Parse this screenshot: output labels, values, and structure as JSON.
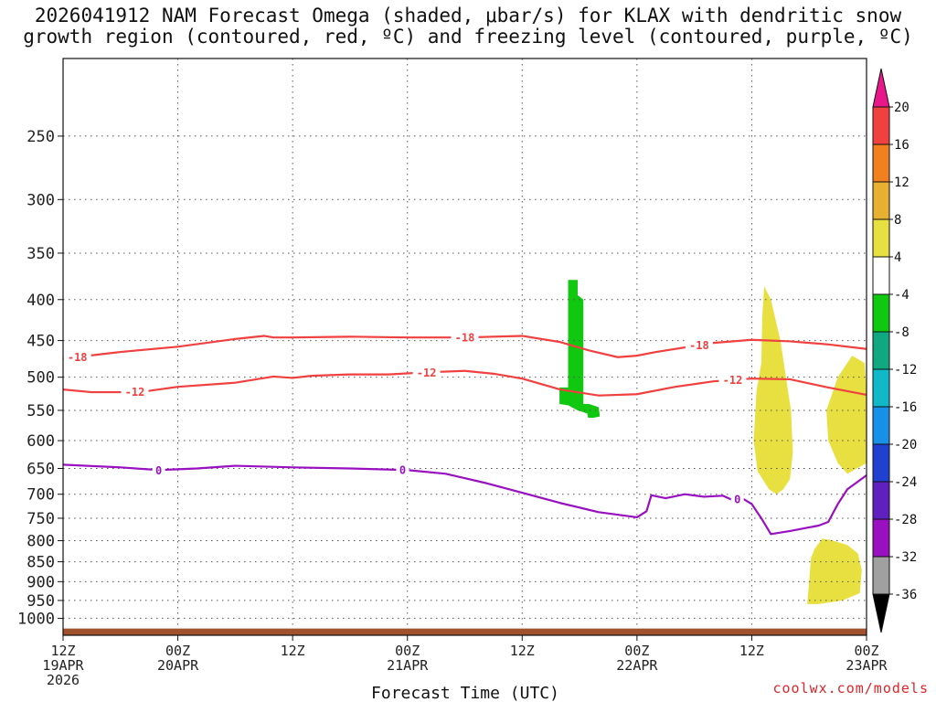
{
  "title_line1": "2026041912 NAM Forecast Omega (shaded, μbar/s) for KLAX with dendritic snow",
  "title_line2": "growth region (contoured, red, ºC) and freezing level (contoured, purple, ºC)",
  "attribution": "coolwx.com/models",
  "chart_data": {
    "type": "heatmap",
    "xlabel": "Forecast Time (UTC)",
    "x_range_hours": [
      0,
      84
    ],
    "y_scale": "log-pressure",
    "y_range_hPa": [
      1050,
      200
    ],
    "grid": true,
    "xticks": [
      {
        "hour": 0,
        "l1": "12Z",
        "l2": "19APR",
        "l3": "2026"
      },
      {
        "hour": 12,
        "l1": "00Z",
        "l2": "20APR",
        "l3": ""
      },
      {
        "hour": 24,
        "l1": "12Z",
        "l2": "",
        "l3": ""
      },
      {
        "hour": 36,
        "l1": "00Z",
        "l2": "21APR",
        "l3": ""
      },
      {
        "hour": 48,
        "l1": "12Z",
        "l2": "",
        "l3": ""
      },
      {
        "hour": 60,
        "l1": "00Z",
        "l2": "22APR",
        "l3": ""
      },
      {
        "hour": 72,
        "l1": "12Z",
        "l2": "",
        "l3": ""
      },
      {
        "hour": 84,
        "l1": "00Z",
        "l2": "23APR",
        "l3": ""
      }
    ],
    "yticks": [
      250,
      300,
      350,
      400,
      450,
      500,
      550,
      600,
      650,
      700,
      750,
      800,
      850,
      900,
      950,
      1000
    ],
    "colorbar": {
      "levels": [
        20,
        16,
        12,
        8,
        4,
        -4,
        -8,
        -12,
        -16,
        -20,
        -24,
        -28,
        -32,
        -36
      ],
      "colors": [
        "#e8188a",
        "#f04040",
        "#f08020",
        "#e8b030",
        "#e8e040",
        "#ffffff",
        "#10c810",
        "#10a880",
        "#10b8c8",
        "#1890e8",
        "#2040d0",
        "#6020c0",
        "#9810c0",
        "#a0a0a0",
        "#000000"
      ]
    },
    "contours": [
      {
        "name": "-18",
        "color": "#f04040",
        "labels_at_hours": [
          1.5,
          42,
          66.5
        ],
        "points": [
          [
            0,
            474
          ],
          [
            6,
            465
          ],
          [
            12,
            458
          ],
          [
            18,
            448
          ],
          [
            21,
            444
          ],
          [
            22,
            446
          ],
          [
            24,
            446
          ],
          [
            30,
            445
          ],
          [
            36,
            446
          ],
          [
            42,
            446
          ],
          [
            48,
            444
          ],
          [
            52,
            452
          ],
          [
            55,
            463
          ],
          [
            58,
            472
          ],
          [
            60,
            470
          ],
          [
            62,
            465
          ],
          [
            66,
            457
          ],
          [
            68,
            453
          ],
          [
            72,
            449
          ],
          [
            76,
            451
          ],
          [
            80,
            455
          ],
          [
            84,
            461
          ]
        ]
      },
      {
        "name": "-12",
        "color": "#f04040",
        "labels_at_hours": [
          7.5,
          38,
          70
        ],
        "points": [
          [
            0,
            518
          ],
          [
            3,
            522
          ],
          [
            6,
            522
          ],
          [
            9,
            520
          ],
          [
            12,
            514
          ],
          [
            18,
            508
          ],
          [
            22,
            499
          ],
          [
            24,
            501
          ],
          [
            26,
            498
          ],
          [
            30,
            496
          ],
          [
            34,
            496
          ],
          [
            38,
            493
          ],
          [
            42,
            491
          ],
          [
            45,
            495
          ],
          [
            48,
            502
          ],
          [
            50,
            510
          ],
          [
            52,
            518
          ],
          [
            56,
            527
          ],
          [
            60,
            525
          ],
          [
            64,
            514
          ],
          [
            68,
            506
          ],
          [
            72,
            502
          ],
          [
            76,
            503
          ],
          [
            80,
            515
          ],
          [
            84,
            526
          ]
        ]
      },
      {
        "name": "0",
        "color": "#9810c0",
        "labels_at_hours": [
          10,
          35.5,
          70.5
        ],
        "points": [
          [
            0,
            643
          ],
          [
            6,
            648
          ],
          [
            10,
            653
          ],
          [
            14,
            650
          ],
          [
            18,
            645
          ],
          [
            24,
            648
          ],
          [
            30,
            650
          ],
          [
            36,
            653
          ],
          [
            40,
            660
          ],
          [
            44,
            677
          ],
          [
            48,
            697
          ],
          [
            52,
            718
          ],
          [
            56,
            737
          ],
          [
            60,
            748
          ],
          [
            61,
            735
          ],
          [
            61.5,
            702
          ],
          [
            63,
            708
          ],
          [
            65,
            700
          ],
          [
            67,
            705
          ],
          [
            69,
            703
          ],
          [
            70,
            712
          ],
          [
            71,
            708
          ],
          [
            72,
            720
          ],
          [
            73,
            750
          ],
          [
            74,
            785
          ],
          [
            76,
            778
          ],
          [
            78,
            770
          ],
          [
            79,
            766
          ],
          [
            80,
            758
          ],
          [
            81,
            720
          ],
          [
            82,
            690
          ],
          [
            84,
            663
          ]
        ]
      }
    ],
    "shaded_regions": [
      {
        "value_range": [
          -8,
          -4
        ],
        "color": "#10c810",
        "polygon": [
          [
            52.8,
            378
          ],
          [
            53.8,
            378
          ],
          [
            53.8,
            395
          ],
          [
            54.4,
            400
          ],
          [
            54.4,
            540
          ],
          [
            55,
            540
          ],
          [
            56,
            545
          ],
          [
            56.1,
            557
          ],
          [
            56.1,
            560
          ],
          [
            55.4,
            562
          ],
          [
            54.9,
            562
          ],
          [
            54.8,
            555
          ],
          [
            53.8,
            550
          ],
          [
            52.8,
            542
          ],
          [
            51.9,
            540
          ],
          [
            51.9,
            515
          ],
          [
            52.8,
            515
          ]
        ]
      },
      {
        "value_range": [
          4,
          8
        ],
        "color": "#e8e040",
        "polygon": [
          [
            73.3,
            385
          ],
          [
            74,
            400
          ],
          [
            75,
            450
          ],
          [
            76.1,
            550
          ],
          [
            76.3,
            620
          ],
          [
            76,
            670
          ],
          [
            75.3,
            690
          ],
          [
            74.6,
            700
          ],
          [
            73.8,
            690
          ],
          [
            72.6,
            655
          ],
          [
            72.2,
            600
          ],
          [
            72.5,
            520
          ],
          [
            73,
            480
          ],
          [
            73.1,
            420
          ]
        ]
      },
      {
        "value_range": [
          4,
          8
        ],
        "color": "#e8e040",
        "polygon": [
          [
            84,
            520
          ],
          [
            83.8,
            480
          ],
          [
            82.5,
            470
          ],
          [
            81,
            500
          ],
          [
            79.8,
            550
          ],
          [
            80,
            600
          ],
          [
            81,
            640
          ],
          [
            82,
            660
          ],
          [
            84,
            640
          ]
        ]
      },
      {
        "value_range": [
          4,
          8
        ],
        "color": "#e8e040",
        "polygon": [
          [
            78.6,
            818
          ],
          [
            79.4,
            795
          ],
          [
            80.5,
            800
          ],
          [
            82,
            810
          ],
          [
            83.1,
            830
          ],
          [
            83.5,
            870
          ],
          [
            83.3,
            930
          ],
          [
            81.5,
            950
          ],
          [
            79,
            960
          ],
          [
            77.8,
            960
          ],
          [
            78,
            900
          ],
          [
            78.2,
            840
          ]
        ]
      }
    ],
    "terrain": {
      "color": "#a0522d",
      "top_hPa": [
        [
          0,
          1030
        ],
        [
          84,
          1030
        ]
      ]
    }
  }
}
